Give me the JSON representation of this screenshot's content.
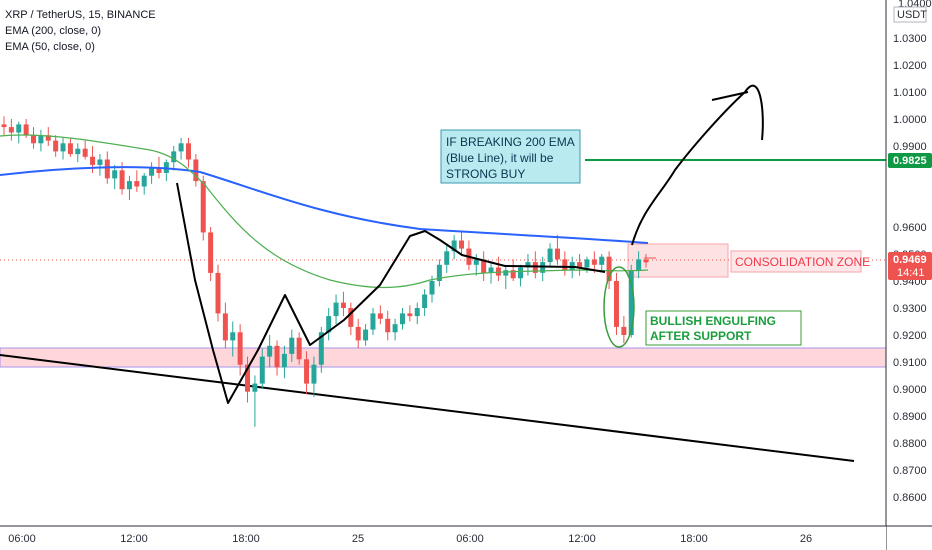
{
  "legend": {
    "line1": "XRP / TetherUS, 15, BINANCE",
    "line2": "EMA (200, close, 0)",
    "line3": "EMA (50, close, 0)"
  },
  "price_scale": {
    "currency_top": "1.0400",
    "currency": "USDT",
    "ticks": [
      "1.0300",
      "1.0200",
      "1.0100",
      "1.0000",
      "0.9900",
      "0.9600",
      "0.9500",
      "0.9400",
      "0.9300",
      "0.9200",
      "0.9100",
      "0.9000",
      "0.8900",
      "0.8800",
      "0.8700",
      "0.8600"
    ]
  },
  "time_axis": {
    "labels": [
      "06:00",
      "12:00",
      "18:00",
      "25",
      "06:00",
      "12:00",
      "18:00",
      "26"
    ]
  },
  "badges": {
    "target_price": "0.9825",
    "current_price": "0.9469",
    "countdown": "14:41"
  },
  "annotations": {
    "ema_note": [
      "IF BREAKING 200 EMA",
      "(Blue Line), it will be",
      "STRONG BUY"
    ],
    "consolidation": "CONSOLIDATION ZONE",
    "engulfing": [
      "BULLISH ENGULFING",
      "AFTER SUPPORT"
    ]
  },
  "colors": {
    "up": "#26a69a",
    "down": "#ef5350",
    "ema200": "#2962ff",
    "ema50": "#4caf50",
    "target_line": "#009933",
    "support_zone": "#ffcdd2",
    "support_border": "#9c8ee0",
    "consolidation_fill": "#fde7e9",
    "callout_fill": "#b2ebf2",
    "engulf_text": "#1b9e3e",
    "consolidation_text": "#f23645"
  },
  "chart_data": {
    "type": "candlestick",
    "symbol": "XRP / TetherUS",
    "interval": "15",
    "exchange": "BINANCE",
    "ylim": [
      0.855,
      1.042
    ],
    "grid": false,
    "candles_ohlc": [
      [
        0.998,
        1.001,
        0.994,
        0.997
      ],
      [
        0.997,
        1.0,
        0.992,
        0.995
      ],
      [
        0.995,
        0.999,
        0.991,
        0.998
      ],
      [
        0.998,
        1.0,
        0.993,
        0.994
      ],
      [
        0.994,
        0.997,
        0.989,
        0.991
      ],
      [
        0.991,
        0.996,
        0.988,
        0.994
      ],
      [
        0.994,
        0.997,
        0.99,
        0.992
      ],
      [
        0.992,
        0.994,
        0.986,
        0.988
      ],
      [
        0.988,
        0.993,
        0.985,
        0.991
      ],
      [
        0.991,
        0.993,
        0.986,
        0.987
      ],
      [
        0.987,
        0.991,
        0.984,
        0.989
      ],
      [
        0.989,
        0.992,
        0.985,
        0.986
      ],
      [
        0.986,
        0.99,
        0.98,
        0.983
      ],
      [
        0.983,
        0.987,
        0.979,
        0.985
      ],
      [
        0.985,
        0.988,
        0.976,
        0.978
      ],
      [
        0.978,
        0.983,
        0.974,
        0.981
      ],
      [
        0.981,
        0.984,
        0.972,
        0.974
      ],
      [
        0.974,
        0.979,
        0.97,
        0.977
      ],
      [
        0.977,
        0.981,
        0.973,
        0.975
      ],
      [
        0.975,
        0.98,
        0.972,
        0.979
      ],
      [
        0.979,
        0.984,
        0.976,
        0.982
      ],
      [
        0.982,
        0.986,
        0.978,
        0.98
      ],
      [
        0.98,
        0.985,
        0.977,
        0.984
      ],
      [
        0.984,
        0.99,
        0.981,
        0.988
      ],
      [
        0.988,
        0.993,
        0.985,
        0.991
      ],
      [
        0.991,
        0.993,
        0.982,
        0.985
      ],
      [
        0.985,
        0.987,
        0.975,
        0.977
      ],
      [
        0.977,
        0.979,
        0.955,
        0.958
      ],
      [
        0.958,
        0.96,
        0.94,
        0.943
      ],
      [
        0.943,
        0.946,
        0.925,
        0.928
      ],
      [
        0.928,
        0.932,
        0.915,
        0.918
      ],
      [
        0.918,
        0.925,
        0.912,
        0.921
      ],
      [
        0.921,
        0.924,
        0.905,
        0.909
      ],
      [
        0.909,
        0.912,
        0.895,
        0.899
      ],
      [
        0.899,
        0.905,
        0.886,
        0.902
      ],
      [
        0.902,
        0.915,
        0.9,
        0.912
      ],
      [
        0.912,
        0.92,
        0.908,
        0.916
      ],
      [
        0.916,
        0.918,
        0.905,
        0.908
      ],
      [
        0.908,
        0.916,
        0.904,
        0.913
      ],
      [
        0.913,
        0.922,
        0.91,
        0.919
      ],
      [
        0.919,
        0.921,
        0.909,
        0.911
      ],
      [
        0.911,
        0.914,
        0.898,
        0.902
      ],
      [
        0.902,
        0.912,
        0.897,
        0.909
      ],
      [
        0.909,
        0.923,
        0.906,
        0.921
      ],
      [
        0.921,
        0.93,
        0.918,
        0.927
      ],
      [
        0.927,
        0.935,
        0.924,
        0.932
      ],
      [
        0.932,
        0.936,
        0.927,
        0.93
      ],
      [
        0.93,
        0.932,
        0.92,
        0.923
      ],
      [
        0.923,
        0.926,
        0.915,
        0.918
      ],
      [
        0.918,
        0.924,
        0.916,
        0.922
      ],
      [
        0.922,
        0.93,
        0.92,
        0.928
      ],
      [
        0.928,
        0.931,
        0.924,
        0.926
      ],
      [
        0.926,
        0.929,
        0.918,
        0.921
      ],
      [
        0.921,
        0.926,
        0.918,
        0.924
      ],
      [
        0.924,
        0.93,
        0.922,
        0.928
      ],
      [
        0.928,
        0.931,
        0.925,
        0.927
      ],
      [
        0.927,
        0.932,
        0.924,
        0.93
      ],
      [
        0.93,
        0.937,
        0.927,
        0.935
      ],
      [
        0.935,
        0.942,
        0.932,
        0.94
      ],
      [
        0.94,
        0.948,
        0.938,
        0.946
      ],
      [
        0.946,
        0.953,
        0.943,
        0.951
      ],
      [
        0.951,
        0.957,
        0.948,
        0.955
      ],
      [
        0.955,
        0.958,
        0.95,
        0.952
      ],
      [
        0.952,
        0.955,
        0.944,
        0.946
      ],
      [
        0.946,
        0.95,
        0.942,
        0.948
      ],
      [
        0.948,
        0.951,
        0.94,
        0.943
      ],
      [
        0.943,
        0.947,
        0.939,
        0.945
      ],
      [
        0.945,
        0.949,
        0.94,
        0.942
      ],
      [
        0.942,
        0.946,
        0.937,
        0.944
      ],
      [
        0.944,
        0.948,
        0.94,
        0.941
      ],
      [
        0.941,
        0.946,
        0.938,
        0.945
      ],
      [
        0.945,
        0.95,
        0.942,
        0.947
      ],
      [
        0.947,
        0.951,
        0.941,
        0.943
      ],
      [
        0.943,
        0.949,
        0.94,
        0.947
      ],
      [
        0.947,
        0.954,
        0.945,
        0.952
      ],
      [
        0.952,
        0.957,
        0.946,
        0.948
      ],
      [
        0.948,
        0.951,
        0.942,
        0.944
      ],
      [
        0.944,
        0.949,
        0.941,
        0.947
      ],
      [
        0.947,
        0.95,
        0.942,
        0.945
      ],
      [
        0.945,
        0.949,
        0.943,
        0.948
      ],
      [
        0.948,
        0.951,
        0.943,
        0.946
      ],
      [
        0.946,
        0.95,
        0.944,
        0.949
      ],
      [
        0.949,
        0.951,
        0.937,
        0.94
      ],
      [
        0.94,
        0.943,
        0.92,
        0.923
      ],
      [
        0.923,
        0.927,
        0.917,
        0.92
      ],
      [
        0.92,
        0.946,
        0.919,
        0.944
      ],
      [
        0.944,
        0.951,
        0.941,
        0.948
      ],
      [
        0.948,
        0.95,
        0.945,
        0.9469
      ]
    ],
    "ema200_series": [
      0.975,
      0.974,
      0.972,
      0.969,
      0.966,
      0.964,
      0.962,
      0.96,
      0.958,
      0.957,
      0.955,
      0.954,
      0.953
    ],
    "ema50_series": [
      0.991,
      0.985,
      0.978,
      0.958,
      0.938,
      0.93,
      0.932,
      0.938,
      0.942,
      0.944,
      0.945,
      0.945,
      0.944
    ],
    "levels": {
      "target": 0.9825,
      "current": 0.9469,
      "support_zone": [
        0.9082,
        0.9152
      ],
      "consolidation_zone": [
        0.9418,
        0.9553
      ]
    }
  }
}
